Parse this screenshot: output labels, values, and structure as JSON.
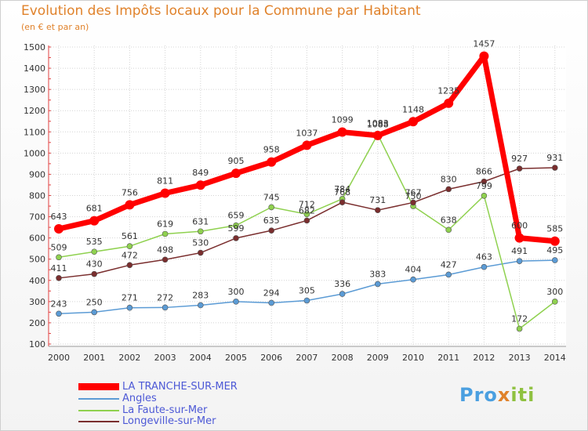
{
  "header": {
    "title": "Evolution des Impôts locaux pour la Commune par Habitant",
    "subtitle": "(en € et par an)"
  },
  "chart_data": {
    "type": "line",
    "x": [
      "2000",
      "2001",
      "2002",
      "2003",
      "2004",
      "2005",
      "2006",
      "2007",
      "2008",
      "2009",
      "2010",
      "2011",
      "2012",
      "2013",
      "2014"
    ],
    "ylim": [
      100,
      1500
    ],
    "yticks": [
      100,
      200,
      300,
      400,
      500,
      600,
      700,
      800,
      900,
      1000,
      1100,
      1200,
      1300,
      1400,
      1500
    ],
    "grid": true,
    "legend_position": "bottom-left",
    "series": [
      {
        "name": "LA TRANCHE-SUR-MER",
        "color": "#ff0000",
        "values": [
          643,
          681,
          756,
          811,
          849,
          905,
          958,
          1037,
          1099,
          1083,
          1148,
          1235,
          1457,
          600,
          585
        ]
      },
      {
        "name": "Angles",
        "color": "#5b9bd5",
        "values": [
          243,
          250,
          271,
          272,
          283,
          300,
          294,
          305,
          336,
          383,
          404,
          427,
          463,
          491,
          495
        ]
      },
      {
        "name": "La Faute-sur-Mer",
        "color": "#8fd14f",
        "values": [
          509,
          535,
          561,
          619,
          631,
          659,
          745,
          712,
          784,
          1088,
          750,
          638,
          799,
          172,
          300
        ]
      },
      {
        "name": "Longeville-sur-Mer",
        "color": "#7a2e2e",
        "values": [
          411,
          430,
          472,
          498,
          530,
          599,
          635,
          682,
          768,
          731,
          767,
          830,
          866,
          927,
          931
        ]
      }
    ]
  },
  "logo": {
    "parts": [
      {
        "text": "Pro",
        "color": "#4a9fe0"
      },
      {
        "text": "x",
        "color": "#e0822b"
      },
      {
        "text": "i",
        "color": "#8fc140"
      },
      {
        "text": "ti",
        "color": "#8fc140"
      }
    ]
  }
}
